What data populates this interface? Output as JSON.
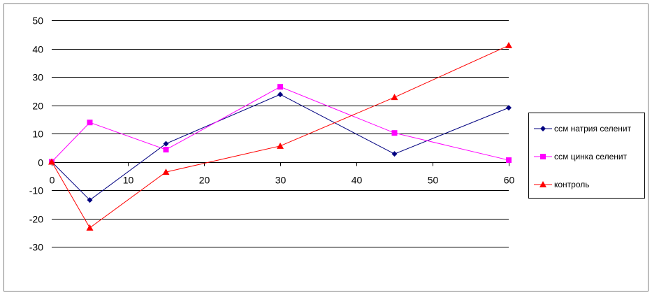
{
  "chart_data": {
    "type": "line",
    "title": "",
    "xlabel": "",
    "ylabel": "",
    "xlim": [
      0,
      60
    ],
    "ylim": [
      -30,
      50
    ],
    "x_ticks": [
      0,
      10,
      20,
      30,
      40,
      50,
      60
    ],
    "y_ticks": [
      -30,
      -20,
      -10,
      0,
      10,
      20,
      30,
      40,
      50
    ],
    "grid": "horizontal",
    "legend_position": "right",
    "x": [
      0,
      5,
      15,
      30,
      45,
      60
    ],
    "series": [
      {
        "name": "ссм натрия  селенит",
        "color": "#000080",
        "marker": "diamond",
        "values": [
          0,
          -13.5,
          6.4,
          23.8,
          2.8,
          19.1
        ]
      },
      {
        "name": "ссм цинка  селенит",
        "color": "#FF00FF",
        "marker": "square",
        "values": [
          0,
          13.9,
          4.3,
          26.5,
          10.2,
          0.6
        ]
      },
      {
        "name": "контроль",
        "color": "#FF0000",
        "marker": "triangle",
        "values": [
          0,
          -23.3,
          -3.6,
          5.6,
          22.8,
          41.1
        ]
      }
    ]
  }
}
